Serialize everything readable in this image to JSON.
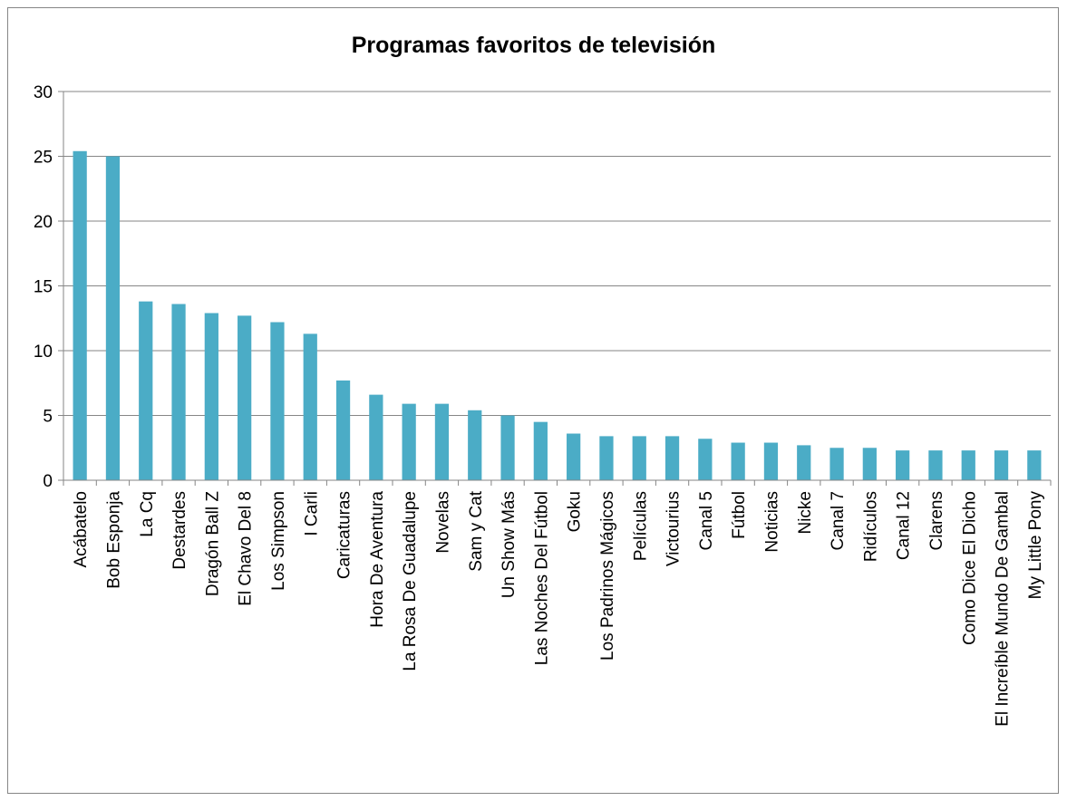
{
  "chart_data": {
    "type": "bar",
    "title": "Programas favoritos de televisión",
    "xlabel": "",
    "ylabel": "",
    "ylim": [
      0,
      30
    ],
    "yticks": [
      0,
      5,
      10,
      15,
      20,
      25,
      30
    ],
    "grid": true,
    "legend": "none",
    "bar_color": "#4BACC6",
    "categories": [
      "Acábatelo",
      "Bob Esponja",
      "La Cq",
      "Destardes",
      "Dragón Ball Z",
      "El Chavo Del 8",
      "Los Simpson",
      "I Carli",
      "Caricaturas",
      "Hora De Aventura",
      "La Rosa De Guadalupe",
      "Novelas",
      "Sam y Cat",
      "Un Show Más",
      "Las Noches Del Fútbol",
      "Goku",
      "Los Padrinos Mágicos",
      "Películas",
      "Victourius",
      "Canal 5",
      "Fútbol",
      "Noticias",
      "Nicke",
      "Canal 7",
      "Ridículos",
      "Canal 12",
      "Clarens",
      "Como Dice El Dicho",
      "El Increíble Mundo De Gambal",
      "My Little Pony"
    ],
    "values": [
      25.4,
      25.0,
      13.8,
      13.6,
      12.9,
      12.7,
      12.2,
      11.3,
      7.7,
      6.6,
      5.9,
      5.9,
      5.4,
      5.0,
      4.5,
      3.6,
      3.4,
      3.4,
      3.4,
      3.2,
      2.9,
      2.9,
      2.7,
      2.5,
      2.5,
      2.3,
      2.3,
      2.3,
      2.3,
      2.3
    ]
  }
}
